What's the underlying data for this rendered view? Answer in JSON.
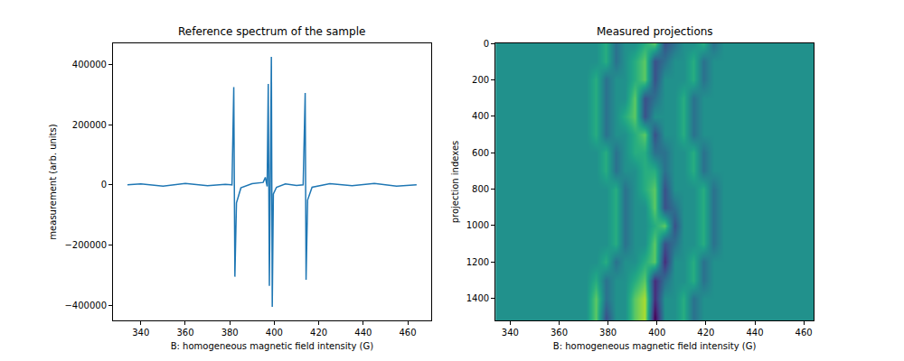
{
  "chart_data": [
    {
      "type": "line",
      "title": "Reference spectrum of the sample",
      "xlabel": "B: homogeneous magnetic field intensity (G)",
      "ylabel": "measurement (arb. units)",
      "color": "#1f77b4",
      "x": [
        334,
        340,
        350,
        360,
        370,
        378,
        381,
        381.8,
        382.3,
        383,
        385,
        390,
        395,
        396,
        396.8,
        397.3,
        397.8,
        398.3,
        398.7,
        399.1,
        399.6,
        401,
        405,
        410,
        413,
        413.9,
        414.3,
        415,
        417,
        425,
        435,
        445,
        455,
        464
      ],
      "values": [
        0,
        3000,
        -4000,
        5000,
        -3000,
        2000,
        0,
        325000,
        -305000,
        -60000,
        -10000,
        4000,
        8000,
        25000,
        -5000,
        335000,
        -335000,
        20000,
        425000,
        -405000,
        -30000,
        -8000,
        3000,
        -2000,
        0,
        305000,
        -315000,
        -50000,
        -8000,
        4000,
        -3000,
        5000,
        -4000,
        0
      ],
      "xlim": [
        327.5,
        470.5
      ],
      "xticks": [
        340,
        360,
        380,
        400,
        420,
        440,
        460
      ],
      "ylim": [
        -450000,
        470000
      ],
      "yticks": [
        {
          "value": -400000,
          "label": "−400000"
        },
        {
          "value": -200000,
          "label": "−200000"
        },
        0,
        200000,
        400000
      ]
    },
    {
      "type": "heatmap",
      "title": "Measured projections",
      "xlabel": "B: homogeneous magnetic field intensity (G)",
      "ylabel": "projection indexes",
      "color": "Viridis",
      "x": [
        335,
        339,
        343,
        347,
        351,
        355,
        359,
        363,
        367,
        371,
        375,
        379,
        383,
        387,
        391,
        395,
        399,
        403,
        407,
        411,
        415,
        419,
        423,
        427,
        431,
        435,
        439,
        443,
        447,
        451,
        455,
        459,
        463
      ],
      "y": [
        0,
        100,
        200,
        300,
        400,
        500,
        600,
        700,
        800,
        900,
        1000,
        1100,
        1200,
        1300,
        1400,
        1500
      ],
      "z": [
        [
          0,
          0,
          0,
          0,
          0,
          0,
          0,
          0,
          0,
          0,
          0,
          1,
          -1,
          0,
          0,
          1,
          2,
          -2,
          -1,
          0,
          0,
          1,
          -1,
          0,
          0,
          0,
          0,
          0,
          0,
          0,
          0,
          0,
          0
        ],
        [
          0,
          0,
          0,
          0,
          0,
          0,
          0,
          0,
          0,
          0,
          0,
          1,
          -1,
          0,
          1,
          2,
          -2,
          -1,
          0,
          0,
          1,
          -1,
          0,
          0,
          0,
          0,
          0,
          0,
          0,
          0,
          0,
          0,
          0
        ],
        [
          0,
          0,
          0,
          0,
          0,
          0,
          0,
          0,
          0,
          0,
          1,
          -1,
          0,
          0,
          1,
          2,
          -2,
          0,
          0,
          0,
          1,
          -1,
          0,
          0,
          0,
          0,
          0,
          0,
          0,
          0,
          0,
          0,
          0
        ],
        [
          0,
          0,
          0,
          0,
          0,
          0,
          0,
          0,
          0,
          0,
          1,
          -1,
          0,
          0,
          2,
          -2,
          -1,
          0,
          0,
          1,
          -1,
          0,
          0,
          0,
          0,
          0,
          0,
          0,
          0,
          0,
          0,
          0,
          0
        ],
        [
          0,
          0,
          0,
          0,
          0,
          0,
          0,
          0,
          0,
          0,
          1,
          -1,
          0,
          1,
          2,
          -2,
          0,
          0,
          0,
          1,
          -1,
          0,
          0,
          0,
          0,
          0,
          0,
          0,
          0,
          0,
          0,
          0,
          0
        ],
        [
          0,
          0,
          0,
          0,
          0,
          0,
          0,
          0,
          0,
          0,
          1,
          -1,
          0,
          0,
          1,
          2,
          -2,
          0,
          0,
          1,
          -1,
          0,
          0,
          0,
          0,
          0,
          0,
          0,
          0,
          0,
          0,
          0,
          0
        ],
        [
          0,
          0,
          0,
          0,
          0,
          0,
          0,
          0,
          0,
          0,
          0,
          1,
          -1,
          0,
          1,
          1,
          -1,
          -1,
          0,
          0,
          1,
          -1,
          0,
          0,
          0,
          0,
          0,
          0,
          0,
          0,
          0,
          0,
          0
        ],
        [
          0,
          0,
          0,
          0,
          0,
          0,
          0,
          0,
          0,
          0,
          0,
          1,
          -1,
          0,
          0,
          1,
          1,
          -1,
          0,
          0,
          1,
          -1,
          0,
          0,
          0,
          0,
          0,
          0,
          0,
          0,
          0,
          0,
          0
        ],
        [
          0,
          0,
          0,
          0,
          0,
          0,
          0,
          0,
          0,
          0,
          0,
          0,
          1,
          -1,
          0,
          1,
          2,
          -2,
          0,
          0,
          0,
          1,
          -1,
          0,
          0,
          0,
          0,
          0,
          0,
          0,
          0,
          0,
          0
        ],
        [
          0,
          0,
          0,
          0,
          0,
          0,
          0,
          0,
          0,
          0,
          0,
          0,
          1,
          -1,
          0,
          0,
          2,
          -2,
          -1,
          0,
          0,
          1,
          -1,
          0,
          0,
          0,
          0,
          0,
          0,
          0,
          0,
          0,
          0
        ],
        [
          0,
          0,
          0,
          0,
          0,
          0,
          0,
          0,
          0,
          0,
          0,
          0,
          1,
          -1,
          0,
          0,
          1,
          2,
          -2,
          0,
          0,
          1,
          -1,
          0,
          0,
          0,
          0,
          0,
          0,
          0,
          0,
          0,
          0
        ],
        [
          0,
          0,
          0,
          0,
          0,
          0,
          0,
          0,
          0,
          0,
          0,
          0,
          1,
          -1,
          0,
          0,
          2,
          -2,
          -1,
          0,
          0,
          1,
          -1,
          0,
          0,
          0,
          0,
          0,
          0,
          0,
          0,
          0,
          0
        ],
        [
          0,
          0,
          0,
          0,
          0,
          0,
          0,
          0,
          0,
          0,
          0,
          1,
          -1,
          0,
          0,
          1,
          2,
          -3,
          0,
          0,
          1,
          -1,
          0,
          0,
          0,
          0,
          0,
          0,
          0,
          0,
          0,
          0,
          0
        ],
        [
          0,
          0,
          0,
          0,
          0,
          0,
          0,
          0,
          0,
          0,
          1,
          -1,
          0,
          0,
          1,
          2,
          -3,
          -1,
          0,
          0,
          1,
          -1,
          0,
          0,
          0,
          0,
          0,
          0,
          0,
          0,
          0,
          0,
          0
        ],
        [
          0,
          0,
          0,
          0,
          0,
          0,
          0,
          0,
          0,
          0,
          2,
          -1,
          0,
          0,
          2,
          3,
          -3,
          0,
          0,
          1,
          -1,
          0,
          0,
          0,
          0,
          0,
          0,
          0,
          0,
          0,
          0,
          0,
          0
        ],
        [
          0,
          0,
          0,
          0,
          0,
          0,
          0,
          0,
          0,
          0,
          2,
          -2,
          0,
          0,
          2,
          3,
          -4,
          0,
          0,
          1,
          -1,
          0,
          0,
          0,
          0,
          0,
          0,
          0,
          0,
          0,
          0,
          0,
          0
        ]
      ],
      "zlim": [
        -4,
        4
      ],
      "xlim": [
        334,
        464
      ],
      "xticks": [
        340,
        360,
        380,
        400,
        420,
        440,
        460
      ],
      "ylim": [
        1520,
        0
      ],
      "yticks": [
        0,
        200,
        400,
        600,
        800,
        1000,
        1200,
        1400
      ]
    }
  ]
}
